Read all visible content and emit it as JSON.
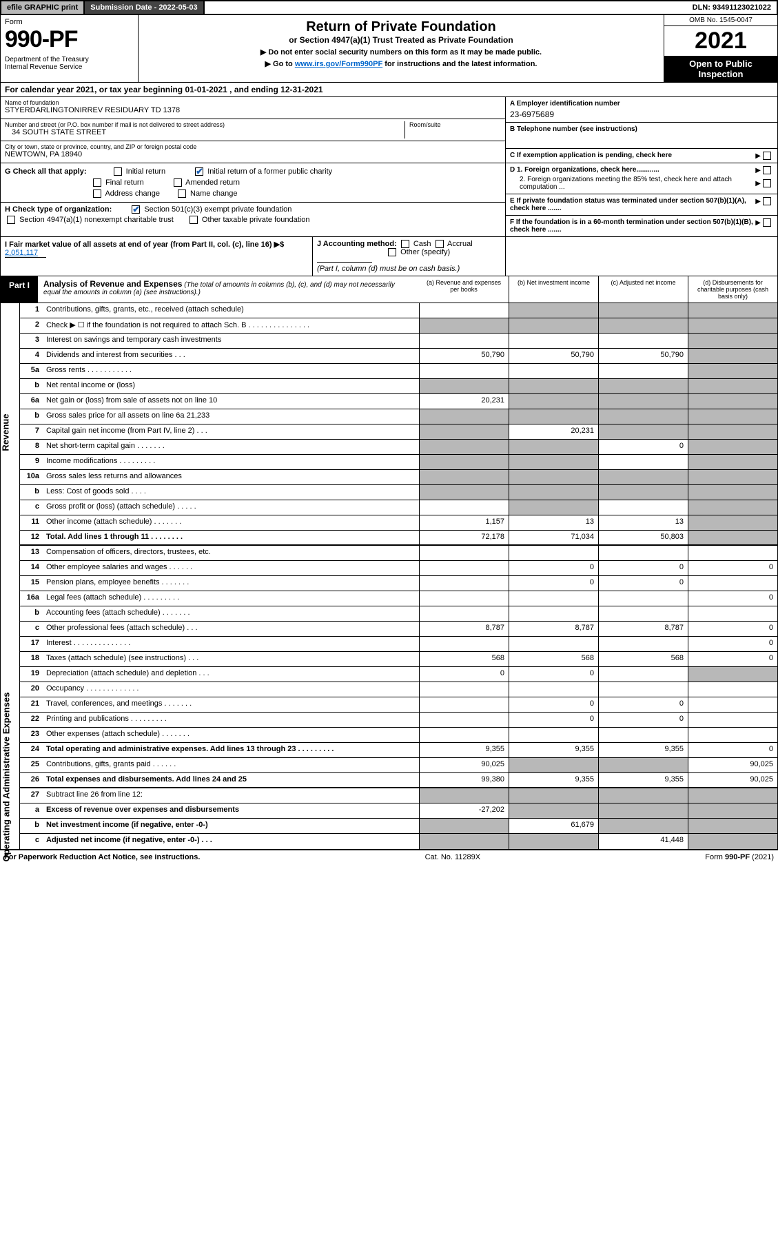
{
  "topbar": {
    "efile": "efile GRAPHIC print",
    "subdate_label": "Submission Date - 2022-05-03",
    "dln": "DLN: 93491123021022"
  },
  "header": {
    "form_word": "Form",
    "form_num": "990-PF",
    "dept": "Department of the Treasury\nInternal Revenue Service",
    "title": "Return of Private Foundation",
    "subtitle": "or Section 4947(a)(1) Trust Treated as Private Foundation",
    "note1": "▶ Do not enter social security numbers on this form as it may be made public.",
    "note2_pre": "▶ Go to ",
    "note2_link": "www.irs.gov/Form990PF",
    "note2_post": " for instructions and the latest information.",
    "omb": "OMB No. 1545-0047",
    "year": "2021",
    "inspect": "Open to Public Inspection"
  },
  "calyear": "For calendar year 2021, or tax year beginning 01-01-2021             , and ending 12-31-2021",
  "info": {
    "name_lbl": "Name of foundation",
    "name": "STYERDARLINGTONIRREV RESIDUARY TD 1378",
    "addr_lbl": "Number and street (or P.O. box number if mail is not delivered to street address)",
    "addr": "34 SOUTH STATE STREET",
    "room_lbl": "Room/suite",
    "city_lbl": "City or town, state or province, country, and ZIP or foreign postal code",
    "city": "NEWTOWN, PA  18940",
    "ein_lbl": "A Employer identification number",
    "ein": "23-6975689",
    "phone_lbl": "B Telephone number (see instructions)",
    "c_lbl": "C If exemption application is pending, check here",
    "d1": "D 1. Foreign organizations, check here............",
    "d2": "2. Foreign organizations meeting the 85% test, check here and attach computation ...",
    "e_lbl": "E  If private foundation status was terminated under section 507(b)(1)(A), check here .......",
    "f_lbl": "F  If the foundation is in a 60-month termination under section 507(b)(1)(B), check here .......",
    "g_lbl": "G Check all that apply:",
    "g_opts": [
      "Initial return",
      "Initial return of a former public charity",
      "Final return",
      "Amended return",
      "Address change",
      "Name change"
    ],
    "h_lbl": "H Check type of organization:",
    "h_opts": [
      "Section 501(c)(3) exempt private foundation",
      "Section 4947(a)(1) nonexempt charitable trust",
      "Other taxable private foundation"
    ],
    "i_lbl": "I Fair market value of all assets at end of year (from Part II, col. (c), line 16) ▶$",
    "i_val": "2,051,117",
    "j_lbl": "J Accounting method:",
    "j_opts": [
      "Cash",
      "Accrual",
      "Other (specify)"
    ],
    "j_note": "(Part I, column (d) must be on cash basis.)"
  },
  "part1": {
    "tab": "Part I",
    "title": "Analysis of Revenue and Expenses",
    "desc": "(The total of amounts in columns (b), (c), and (d) may not necessarily equal the amounts in column (a) (see instructions).)",
    "cols": {
      "a": "(a)  Revenue and expenses per books",
      "b": "(b)  Net investment income",
      "c": "(c)  Adjusted net income",
      "d": "(d)  Disbursements for charitable purposes (cash basis only)"
    }
  },
  "side": {
    "rev": "Revenue",
    "exp": "Operating and Administrative Expenses"
  },
  "rows": [
    {
      "n": "1",
      "t": "Contributions, gifts, grants, etc., received (attach schedule)",
      "a": "",
      "b": "sh",
      "c": "sh",
      "d": "sh"
    },
    {
      "n": "2",
      "t": "Check ▶ ☐ if the foundation is not required to attach Sch. B   .  .  .  .  .  .  .  .  .  .  .  .  .  .  .",
      "a": "sh",
      "b": "sh",
      "c": "sh",
      "d": "sh"
    },
    {
      "n": "3",
      "t": "Interest on savings and temporary cash investments",
      "a": "",
      "b": "",
      "c": "",
      "d": "sh"
    },
    {
      "n": "4",
      "t": "Dividends and interest from securities     .    .    .",
      "a": "50,790",
      "b": "50,790",
      "c": "50,790",
      "d": "sh"
    },
    {
      "n": "5a",
      "t": "Gross rents     .    .    .    .    .    .    .    .    .    .    .",
      "a": "",
      "b": "",
      "c": "",
      "d": "sh"
    },
    {
      "n": "b",
      "t": "Net rental income or (loss)  ",
      "a": "sh",
      "b": "sh",
      "c": "sh",
      "d": "sh"
    },
    {
      "n": "6a",
      "t": "Net gain or (loss) from sale of assets not on line 10",
      "a": "20,231",
      "b": "sh",
      "c": "sh",
      "d": "sh"
    },
    {
      "n": "b",
      "t": "Gross sales price for all assets on line 6a            21,233",
      "a": "sh",
      "b": "sh",
      "c": "sh",
      "d": "sh"
    },
    {
      "n": "7",
      "t": "Capital gain net income (from Part IV, line 2)    .    .    .",
      "a": "sh",
      "b": "20,231",
      "c": "sh",
      "d": "sh"
    },
    {
      "n": "8",
      "t": "Net short-term capital gain   .    .    .    .    .    .    .",
      "a": "sh",
      "b": "sh",
      "c": "0",
      "d": "sh"
    },
    {
      "n": "9",
      "t": "Income modifications  .    .    .    .    .    .    .    .    .",
      "a": "sh",
      "b": "sh",
      "c": "",
      "d": "sh"
    },
    {
      "n": "10a",
      "t": "Gross sales less returns and allowances",
      "a": "sh",
      "b": "sh",
      "c": "sh",
      "d": "sh"
    },
    {
      "n": "b",
      "t": "Less: Cost of goods sold     .    .    .    .",
      "a": "sh",
      "b": "sh",
      "c": "sh",
      "d": "sh"
    },
    {
      "n": "c",
      "t": "Gross profit or (loss) (attach schedule)     .    .    .    .    .",
      "a": "",
      "b": "sh",
      "c": "",
      "d": "sh"
    },
    {
      "n": "11",
      "t": "Other income (attach schedule)    .    .    .    .    .    .    .",
      "a": "1,157",
      "b": "13",
      "c": "13",
      "d": "sh"
    },
    {
      "n": "12",
      "t": "Total. Add lines 1 through 11   .    .    .    .    .    .    .    .",
      "a": "72,178",
      "b": "71,034",
      "c": "50,803",
      "d": "sh",
      "bold": true
    },
    {
      "n": "13",
      "t": "Compensation of officers, directors, trustees, etc.",
      "a": "",
      "b": "",
      "c": "",
      "d": ""
    },
    {
      "n": "14",
      "t": "Other employee salaries and wages    .    .    .    .    .    .",
      "a": "",
      "b": "0",
      "c": "0",
      "d": "0"
    },
    {
      "n": "15",
      "t": "Pension plans, employee benefits   .    .    .    .    .    .    .",
      "a": "",
      "b": "0",
      "c": "0",
      "d": ""
    },
    {
      "n": "16a",
      "t": "Legal fees (attach schedule)  .    .    .    .    .    .    .    .    .",
      "a": "",
      "b": "",
      "c": "",
      "d": "0"
    },
    {
      "n": "b",
      "t": "Accounting fees (attach schedule)  .    .    .    .    .    .    .",
      "a": "",
      "b": "",
      "c": "",
      "d": ""
    },
    {
      "n": "c",
      "t": "Other professional fees (attach schedule)    .    .    .",
      "a": "8,787",
      "b": "8,787",
      "c": "8,787",
      "d": "0"
    },
    {
      "n": "17",
      "t": "Interest  .    .    .    .    .    .    .    .    .    .    .    .    .    .",
      "a": "",
      "b": "",
      "c": "",
      "d": "0"
    },
    {
      "n": "18",
      "t": "Taxes (attach schedule) (see instructions)     .    .    .",
      "a": "568",
      "b": "568",
      "c": "568",
      "d": "0"
    },
    {
      "n": "19",
      "t": "Depreciation (attach schedule) and depletion    .    .    .",
      "a": "0",
      "b": "0",
      "c": "",
      "d": "sh"
    },
    {
      "n": "20",
      "t": "Occupancy  .    .    .    .    .    .    .    .    .    .    .    .    .",
      "a": "",
      "b": "",
      "c": "",
      "d": ""
    },
    {
      "n": "21",
      "t": "Travel, conferences, and meetings  .    .    .    .    .    .    .",
      "a": "",
      "b": "0",
      "c": "0",
      "d": ""
    },
    {
      "n": "22",
      "t": "Printing and publications  .    .    .    .    .    .    .    .    .",
      "a": "",
      "b": "0",
      "c": "0",
      "d": ""
    },
    {
      "n": "23",
      "t": "Other expenses (attach schedule)   .    .    .    .    .    .    .",
      "a": "",
      "b": "",
      "c": "",
      "d": ""
    },
    {
      "n": "24",
      "t": "Total operating and administrative expenses. Add lines 13 through 23   .    .    .    .    .    .    .    .    .",
      "a": "9,355",
      "b": "9,355",
      "c": "9,355",
      "d": "0",
      "bold": true
    },
    {
      "n": "25",
      "t": "Contributions, gifts, grants paid     .    .    .    .    .    .",
      "a": "90,025",
      "b": "sh",
      "c": "sh",
      "d": "90,025"
    },
    {
      "n": "26",
      "t": "Total expenses and disbursements. Add lines 24 and 25",
      "a": "99,380",
      "b": "9,355",
      "c": "9,355",
      "d": "90,025",
      "bold": true
    },
    {
      "n": "27",
      "t": "Subtract line 26 from line 12:",
      "a": "sh",
      "b": "sh",
      "c": "sh",
      "d": "sh"
    },
    {
      "n": "a",
      "t": "Excess of revenue over expenses and disbursements",
      "a": "-27,202",
      "b": "sh",
      "c": "sh",
      "d": "sh",
      "bold": true
    },
    {
      "n": "b",
      "t": "Net investment income (if negative, enter -0-)",
      "a": "sh",
      "b": "61,679",
      "c": "sh",
      "d": "sh",
      "bold": true
    },
    {
      "n": "c",
      "t": "Adjusted net income (if negative, enter -0-)   .   .   .",
      "a": "sh",
      "b": "sh",
      "c": "41,448",
      "d": "sh",
      "bold": true
    }
  ],
  "footer": {
    "left": "For Paperwork Reduction Act Notice, see instructions.",
    "mid": "Cat. No. 11289X",
    "right": "Form 990-PF (2021)"
  },
  "colors": {
    "shade": "#b8b8b8",
    "dark": "#444444",
    "link": "#0066cc",
    "check": "#1a5fb4"
  }
}
